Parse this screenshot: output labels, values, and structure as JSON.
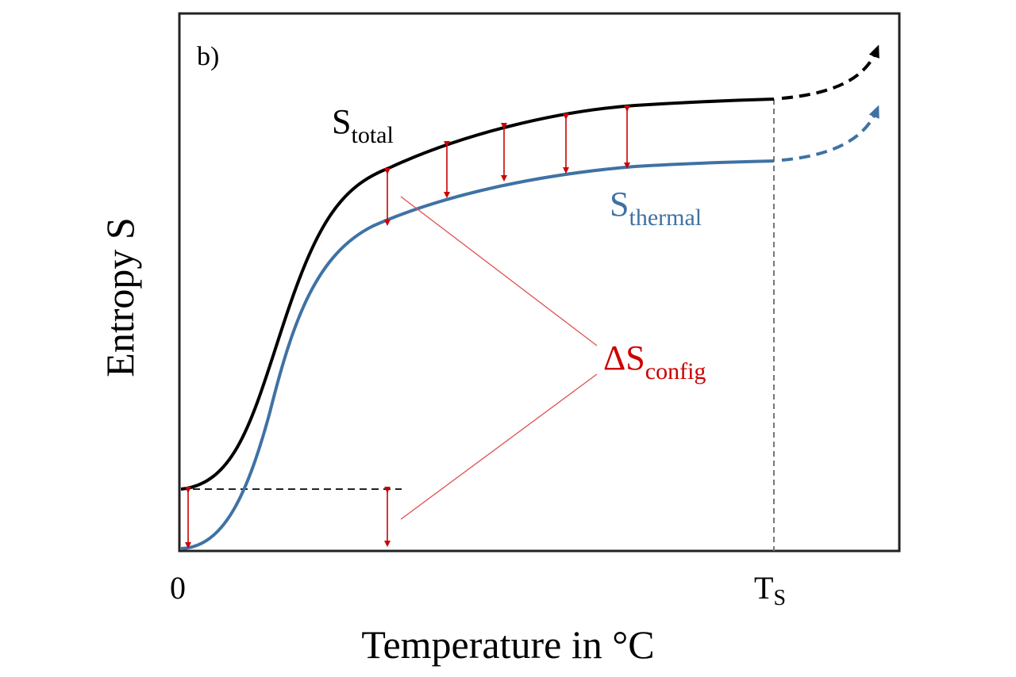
{
  "panel_label": "b)",
  "y_axis_label": "Entropy S",
  "x_axis_label": "Temperature in °C",
  "x_ticks": {
    "origin": "0",
    "ts_main": "T",
    "ts_sub": "S"
  },
  "curves": {
    "total": {
      "main": "S",
      "sub": "total",
      "color": "#000000"
    },
    "thermal": {
      "main": "S",
      "sub": "thermal",
      "color": "#3f72a4"
    }
  },
  "annotation": {
    "main": "ΔS",
    "sub": "config",
    "color": "#cc0000"
  }
}
